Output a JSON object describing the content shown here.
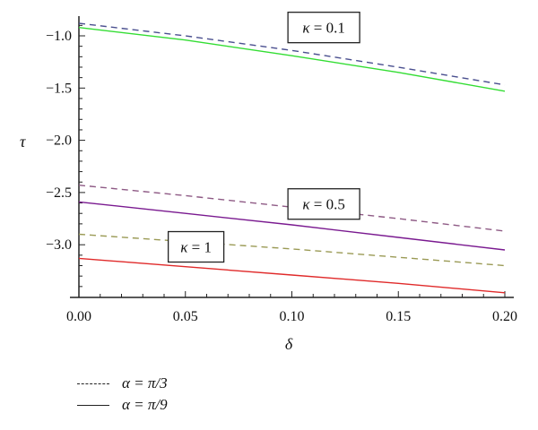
{
  "chart_data": {
    "type": "line",
    "title": "",
    "xlabel": "δ",
    "ylabel": "τ",
    "xlim": [
      0.0,
      0.2
    ],
    "ylim": [
      -3.5,
      -0.85
    ],
    "grid": false,
    "x_ticks": [
      "0.00",
      "0.05",
      "0.10",
      "0.15",
      "0.20"
    ],
    "y_ticks": [
      "-1.0",
      "-1.5",
      "-2.0",
      "-2.5",
      "-3.0"
    ],
    "x": [
      0.0,
      0.05,
      0.1,
      0.15,
      0.2
    ],
    "series": [
      {
        "name": "κ = 0.1, α = π/3",
        "style": "dashed",
        "color": "#4a4f8f",
        "values": [
          -0.88,
          -1.0,
          -1.14,
          -1.3,
          -1.47
        ]
      },
      {
        "name": "κ = 0.1, α = π/9",
        "style": "solid",
        "color": "#33dd33",
        "values": [
          -0.92,
          -1.04,
          -1.19,
          -1.35,
          -1.53
        ]
      },
      {
        "name": "κ = 0.5, α = π/3",
        "style": "dashed",
        "color": "#8e5a85",
        "values": [
          -2.43,
          -2.53,
          -2.64,
          -2.75,
          -2.87
        ]
      },
      {
        "name": "κ = 0.5, α = π/9",
        "style": "solid",
        "color": "#7a1a90",
        "values": [
          -2.59,
          -2.7,
          -2.81,
          -2.93,
          -3.05
        ]
      },
      {
        "name": "κ = 1, α = π/3",
        "style": "dashed",
        "color": "#9a9a55",
        "values": [
          -2.9,
          -2.97,
          -3.04,
          -3.12,
          -3.2
        ]
      },
      {
        "name": "κ = 1, α = π/9",
        "style": "solid",
        "color": "#e02a2a",
        "values": [
          -3.13,
          -3.21,
          -3.29,
          -3.37,
          -3.46
        ]
      }
    ],
    "annotations": [
      {
        "text": "κ = 0.1",
        "x": 0.115,
        "y": -0.92
      },
      {
        "text": "κ = 0.5",
        "x": 0.115,
        "y": -2.61
      },
      {
        "text": "κ = 1",
        "x": 0.055,
        "y": -3.02
      }
    ],
    "legend": {
      "position": "bottom-left",
      "entries": [
        {
          "style": "dashed",
          "label": "α = π/3"
        },
        {
          "style": "solid",
          "label": "α = π/9"
        }
      ]
    }
  }
}
